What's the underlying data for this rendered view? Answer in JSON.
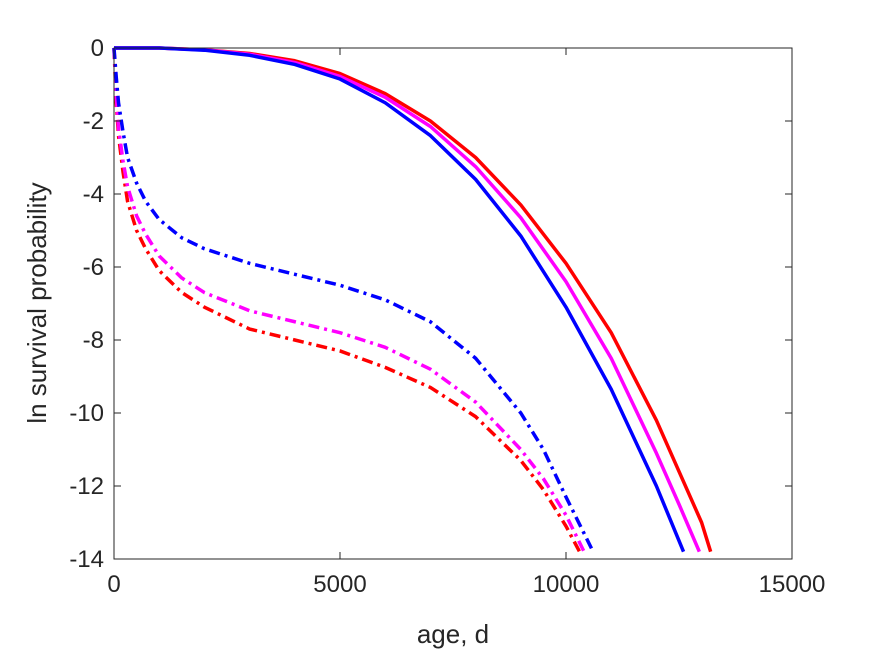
{
  "chart_data": {
    "type": "line",
    "title": "",
    "xlabel": "age, d",
    "ylabel": "ln survival probability",
    "xlim": [
      0,
      15000
    ],
    "ylim": [
      -14,
      0
    ],
    "xticks": [
      0,
      5000,
      10000,
      15000
    ],
    "xtick_labels": [
      "0",
      "5000",
      "10000",
      "15000"
    ],
    "yticks": [
      0,
      -2,
      -4,
      -6,
      -8,
      -10,
      -12,
      -14
    ],
    "ytick_labels": [
      "0",
      "-2",
      "-4",
      "-6",
      "-8",
      "-10",
      "-12",
      "-14"
    ],
    "grid": false,
    "legend": false,
    "series": [
      {
        "color": "#ff0000",
        "style": "solid",
        "x": [
          0,
          1000,
          2000,
          3000,
          4000,
          5000,
          6000,
          7000,
          8000,
          9000,
          10000,
          11000,
          12000,
          12500,
          13000,
          13200
        ],
        "y": [
          0,
          0,
          -0.05,
          -0.15,
          -0.35,
          -0.7,
          -1.25,
          -2.0,
          -3.0,
          -4.3,
          -5.9,
          -7.8,
          -10.2,
          -11.6,
          -13.0,
          -13.8
        ]
      },
      {
        "color": "#ff00ff",
        "style": "solid",
        "x": [
          0,
          1000,
          2000,
          3000,
          4000,
          5000,
          6000,
          7000,
          8000,
          9000,
          10000,
          11000,
          12000,
          12500,
          12950
        ],
        "y": [
          0,
          0,
          -0.05,
          -0.17,
          -0.4,
          -0.78,
          -1.35,
          -2.15,
          -3.25,
          -4.65,
          -6.4,
          -8.5,
          -11.1,
          -12.5,
          -13.8
        ]
      },
      {
        "color": "#0000ff",
        "style": "solid",
        "x": [
          0,
          1000,
          2000,
          3000,
          4000,
          5000,
          6000,
          7000,
          8000,
          9000,
          10000,
          11000,
          12000,
          12600
        ],
        "y": [
          0,
          0,
          -0.06,
          -0.2,
          -0.45,
          -0.85,
          -1.5,
          -2.4,
          -3.6,
          -5.15,
          -7.1,
          -9.35,
          -12.0,
          -13.8
        ]
      },
      {
        "color": "#ff0000",
        "style": "dashdot",
        "x": [
          0,
          50,
          100,
          200,
          300,
          500,
          700,
          1000,
          1500,
          2000,
          3000,
          4000,
          5000,
          6000,
          7000,
          8000,
          9000,
          9500,
          10000,
          10300
        ],
        "y": [
          0,
          -1.5,
          -2.4,
          -3.4,
          -4.2,
          -5.0,
          -5.5,
          -6.1,
          -6.7,
          -7.1,
          -7.7,
          -8.0,
          -8.3,
          -8.75,
          -9.3,
          -10.1,
          -11.3,
          -12.1,
          -13.1,
          -13.8
        ]
      },
      {
        "color": "#ff00ff",
        "style": "dashdot",
        "x": [
          0,
          50,
          100,
          200,
          300,
          500,
          700,
          1000,
          1500,
          2000,
          3000,
          4000,
          5000,
          6000,
          7000,
          8000,
          9000,
          9500,
          10000,
          10400
        ],
        "y": [
          0,
          -1.3,
          -2.2,
          -3.1,
          -3.8,
          -4.6,
          -5.1,
          -5.7,
          -6.3,
          -6.7,
          -7.2,
          -7.5,
          -7.8,
          -8.2,
          -8.8,
          -9.7,
          -11.0,
          -11.8,
          -12.8,
          -13.8
        ]
      },
      {
        "color": "#0000ff",
        "style": "dashdot",
        "x": [
          0,
          50,
          100,
          200,
          300,
          500,
          700,
          1000,
          1500,
          2000,
          3000,
          4000,
          5000,
          6000,
          7000,
          8000,
          9000,
          9500,
          10000,
          10400,
          10600
        ],
        "y": [
          0,
          -0.8,
          -1.5,
          -2.3,
          -3.0,
          -3.7,
          -4.2,
          -4.7,
          -5.2,
          -5.5,
          -5.9,
          -6.2,
          -6.5,
          -6.9,
          -7.5,
          -8.5,
          -10.0,
          -11.0,
          -12.3,
          -13.3,
          -13.8
        ]
      }
    ]
  }
}
